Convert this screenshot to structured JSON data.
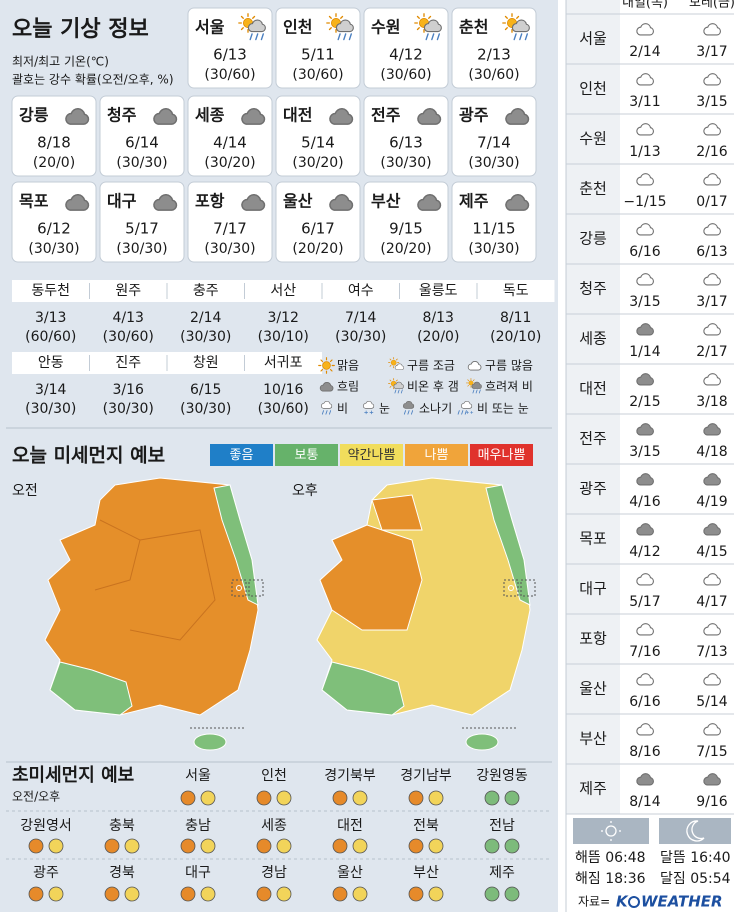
{
  "header": {
    "title": "오늘 기상 정보",
    "notes": [
      "최저/최고 기온(℃)",
      "괄호는 강수 확률(오전/오후, %)"
    ]
  },
  "cities": [
    [
      {
        "name": "서울",
        "temp": "6/13",
        "rain": "(30/60)"
      },
      {
        "name": "인천",
        "temp": "5/11",
        "rain": "(30/60)"
      },
      {
        "name": "수원",
        "temp": "4/12",
        "rain": "(30/60)"
      },
      {
        "name": "춘천",
        "temp": "2/13",
        "rain": "(30/60)"
      }
    ],
    [
      {
        "name": "강릉",
        "temp": "8/18",
        "rain": "(20/0)"
      },
      {
        "name": "청주",
        "temp": "6/14",
        "rain": "(30/30)"
      },
      {
        "name": "세종",
        "temp": "4/14",
        "rain": "(30/20)"
      },
      {
        "name": "대전",
        "temp": "5/14",
        "rain": "(30/20)"
      },
      {
        "name": "전주",
        "temp": "6/13",
        "rain": "(30/30)"
      },
      {
        "name": "광주",
        "temp": "7/14",
        "rain": "(30/30)"
      }
    ],
    [
      {
        "name": "목포",
        "temp": "6/12",
        "rain": "(30/30)"
      },
      {
        "name": "대구",
        "temp": "5/17",
        "rain": "(30/30)"
      },
      {
        "name": "포항",
        "temp": "7/17",
        "rain": "(30/30)"
      },
      {
        "name": "울산",
        "temp": "6/17",
        "rain": "(20/20)"
      },
      {
        "name": "부산",
        "temp": "9/15",
        "rain": "(20/20)"
      },
      {
        "name": "제주",
        "temp": "11/15",
        "rain": "(30/30)"
      }
    ]
  ],
  "towns": [
    [
      {
        "name": "동두천",
        "temp": "3/13",
        "rain": "(60/60)"
      },
      {
        "name": "원주",
        "temp": "4/13",
        "rain": "(30/60)"
      },
      {
        "name": "충주",
        "temp": "2/14",
        "rain": "(30/30)"
      },
      {
        "name": "서산",
        "temp": "3/12",
        "rain": "(30/10)"
      },
      {
        "name": "여수",
        "temp": "7/14",
        "rain": "(30/30)"
      },
      {
        "name": "울릉도",
        "temp": "8/13",
        "rain": "(20/0)"
      },
      {
        "name": "독도",
        "temp": "8/11",
        "rain": "(20/10)"
      }
    ],
    [
      {
        "name": "안동",
        "temp": "3/14",
        "rain": "(30/30)"
      },
      {
        "name": "진주",
        "temp": "3/16",
        "rain": "(30/30)"
      },
      {
        "name": "창원",
        "temp": "6/15",
        "rain": "(30/30)"
      },
      {
        "name": "서귀포",
        "temp": "10/16",
        "rain": "(30/60)"
      }
    ]
  ],
  "legend": [
    "맑음",
    "구름 조금",
    "구름 많음",
    "흐림",
    "비온 후 갬",
    "흐려져 비",
    "비",
    "눈",
    "소나기",
    "비 또는 눈"
  ],
  "dust": {
    "title": "오늘 미세먼지 예보",
    "levels": [
      {
        "label": "좋음",
        "color": "#1f7fc8"
      },
      {
        "label": "보통",
        "color": "#66b26a"
      },
      {
        "label": "약간나쁨",
        "color": "#f1dd5c"
      },
      {
        "label": "나쁨",
        "color": "#f0a43a"
      },
      {
        "label": "매우나쁨",
        "color": "#e0322c"
      }
    ],
    "maps": [
      "오전",
      "오후"
    ]
  },
  "pm25": {
    "title": "초미세먼지 예보",
    "subtitle": "오전/오후",
    "rows": [
      [
        {
          "name": "서울",
          "am": "#e68a2a",
          "pm": "#f2d45a"
        },
        {
          "name": "인천",
          "am": "#e68a2a",
          "pm": "#f2d45a"
        },
        {
          "name": "경기북부",
          "am": "#e68a2a",
          "pm": "#f2d45a"
        },
        {
          "name": "경기남부",
          "am": "#e68a2a",
          "pm": "#f2d45a"
        },
        {
          "name": "강원영동",
          "am": "#7dbb7b",
          "pm": "#7dbb7b"
        }
      ],
      [
        {
          "name": "강원영서",
          "am": "#e68a2a",
          "pm": "#f2d45a"
        },
        {
          "name": "충북",
          "am": "#e68a2a",
          "pm": "#f2d45a"
        },
        {
          "name": "충남",
          "am": "#e68a2a",
          "pm": "#f2d45a"
        },
        {
          "name": "세종",
          "am": "#e68a2a",
          "pm": "#f2d45a"
        },
        {
          "name": "대전",
          "am": "#e68a2a",
          "pm": "#f2d45a"
        },
        {
          "name": "전북",
          "am": "#e68a2a",
          "pm": "#f2d45a"
        },
        {
          "name": "전남",
          "am": "#7dbb7b",
          "pm": "#7dbb7b"
        }
      ],
      [
        {
          "name": "광주",
          "am": "#e68a2a",
          "pm": "#f2d45a"
        },
        {
          "name": "경북",
          "am": "#e68a2a",
          "pm": "#f2d45a"
        },
        {
          "name": "대구",
          "am": "#e68a2a",
          "pm": "#f2d45a"
        },
        {
          "name": "경남",
          "am": "#e68a2a",
          "pm": "#f2d45a"
        },
        {
          "name": "울산",
          "am": "#e68a2a",
          "pm": "#f2d45a"
        },
        {
          "name": "부산",
          "am": "#e68a2a",
          "pm": "#f2d45a"
        },
        {
          "name": "제주",
          "am": "#7dbb7b",
          "pm": "#7dbb7b"
        }
      ]
    ]
  },
  "outlook": {
    "headers": [
      "내일(목)",
      "모레(금)"
    ],
    "rows": [
      {
        "city": "서울",
        "days": [
          {
            "temp": "2/14",
            "color": "#ffffff"
          },
          {
            "temp": "3/17",
            "color": "#ffffff"
          }
        ]
      },
      {
        "city": "인천",
        "days": [
          {
            "temp": "3/11",
            "color": "#ffffff"
          },
          {
            "temp": "3/15",
            "color": "#ffffff"
          }
        ]
      },
      {
        "city": "수원",
        "days": [
          {
            "temp": "1/13",
            "color": "#ffffff"
          },
          {
            "temp": "2/16",
            "color": "#ffffff"
          }
        ]
      },
      {
        "city": "춘천",
        "days": [
          {
            "temp": "−1/15",
            "color": "#ffffff"
          },
          {
            "temp": "0/17",
            "color": "#ffffff"
          }
        ]
      },
      {
        "city": "강릉",
        "days": [
          {
            "temp": "6/16",
            "color": "#ffffff"
          },
          {
            "temp": "6/13",
            "color": "#ffffff"
          }
        ]
      },
      {
        "city": "청주",
        "days": [
          {
            "temp": "3/15",
            "color": "#ffffff"
          },
          {
            "temp": "3/17",
            "color": "#ffffff"
          }
        ]
      },
      {
        "city": "세종",
        "days": [
          {
            "temp": "1/14",
            "color": "#8d8d8d"
          },
          {
            "temp": "2/17",
            "color": "#ffffff"
          }
        ]
      },
      {
        "city": "대전",
        "days": [
          {
            "temp": "2/15",
            "color": "#8d8d8d"
          },
          {
            "temp": "3/18",
            "color": "#ffffff"
          }
        ]
      },
      {
        "city": "전주",
        "days": [
          {
            "temp": "3/15",
            "color": "#8d8d8d"
          },
          {
            "temp": "4/18",
            "color": "#8d8d8d"
          }
        ]
      },
      {
        "city": "광주",
        "days": [
          {
            "temp": "4/16",
            "color": "#8d8d8d"
          },
          {
            "temp": "4/19",
            "color": "#8d8d8d"
          }
        ]
      },
      {
        "city": "목포",
        "days": [
          {
            "temp": "4/12",
            "color": "#8d8d8d"
          },
          {
            "temp": "4/15",
            "color": "#8d8d8d"
          }
        ]
      },
      {
        "city": "대구",
        "days": [
          {
            "temp": "5/17",
            "color": "#ffffff"
          },
          {
            "temp": "4/17",
            "color": "#ffffff"
          }
        ]
      },
      {
        "city": "포항",
        "days": [
          {
            "temp": "7/16",
            "color": "#ffffff"
          },
          {
            "temp": "7/13",
            "color": "#ffffff"
          }
        ]
      },
      {
        "city": "울산",
        "days": [
          {
            "temp": "6/16",
            "color": "#ffffff"
          },
          {
            "temp": "5/14",
            "color": "#ffffff"
          }
        ]
      },
      {
        "city": "부산",
        "days": [
          {
            "temp": "8/16",
            "color": "#ffffff"
          },
          {
            "temp": "7/15",
            "color": "#ffffff"
          }
        ]
      },
      {
        "city": "제주",
        "days": [
          {
            "temp": "8/14",
            "color": "#8d8d8d"
          },
          {
            "temp": "9/16",
            "color": "#8d8d8d"
          }
        ]
      }
    ]
  },
  "astro": [
    "해뜸 06:48",
    "해짐 18:36",
    "달뜸 16:40",
    "달짐 05:54"
  ],
  "source": {
    "label": "자료=",
    "brand": [
      "K",
      "WEATHER"
    ]
  }
}
